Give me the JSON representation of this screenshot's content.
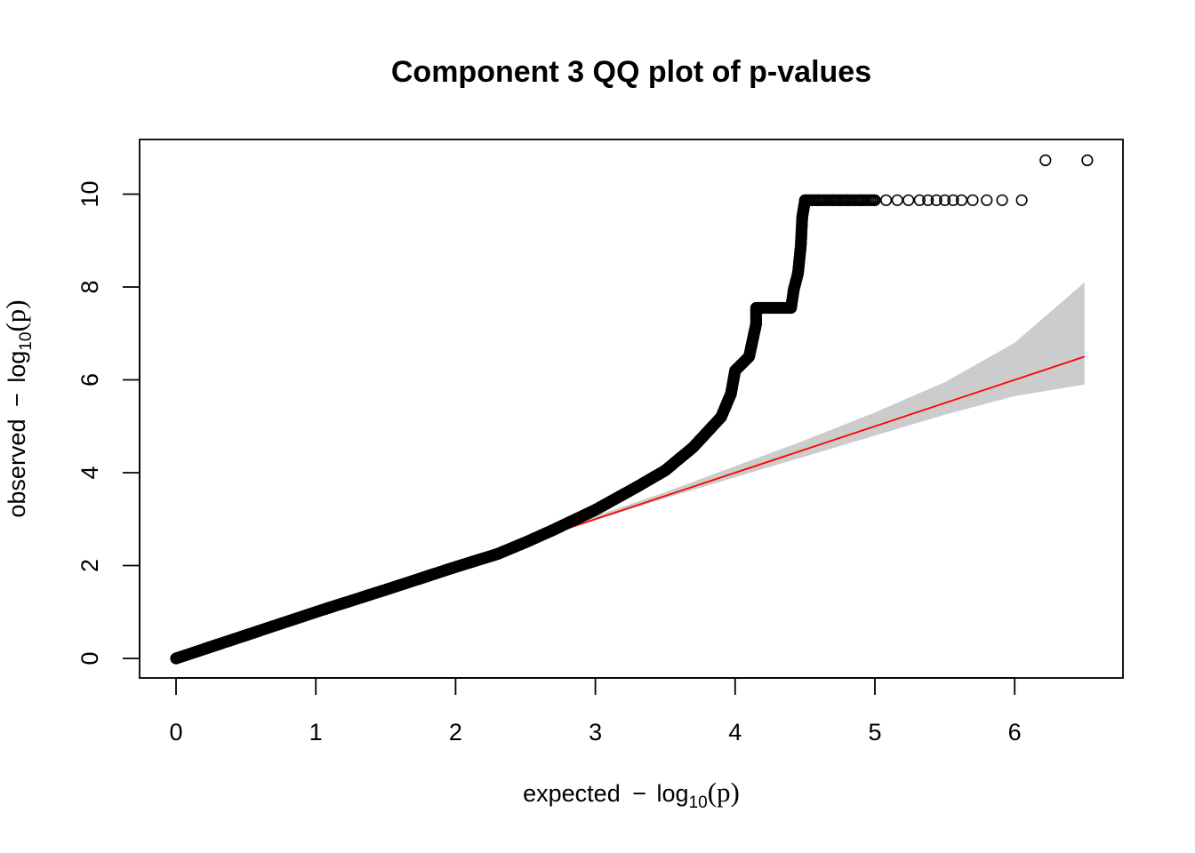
{
  "chart_data": {
    "type": "scatter",
    "title": "Component 3 QQ plot of p-values",
    "xlabel": {
      "prefix": "expected",
      "minus": "−",
      "fn": "log",
      "sub": "10",
      "arg": "(p)"
    },
    "ylabel": {
      "prefix": "observed",
      "minus": "−",
      "fn": "log",
      "sub": "10",
      "arg": "(p)"
    },
    "xlim": [
      0,
      6.5
    ],
    "ylim": [
      0,
      10.75
    ],
    "x_ticks": [
      0,
      1,
      2,
      3,
      4,
      5,
      6
    ],
    "y_ticks": [
      0,
      2,
      4,
      6,
      8,
      10
    ],
    "grid": false,
    "reference_line": {
      "color": "#ff0000",
      "from": [
        2.65,
        2.65
      ],
      "to": [
        6.5,
        6.5
      ]
    },
    "confidence_band": {
      "color": "#cccccc",
      "upper": [
        [
          2.6,
          2.65
        ],
        [
          3.5,
          3.58
        ],
        [
          4.5,
          4.7
        ],
        [
          5.0,
          5.3
        ],
        [
          5.5,
          5.95
        ],
        [
          6.0,
          6.8
        ],
        [
          6.5,
          8.1
        ]
      ],
      "lower": [
        [
          2.6,
          2.6
        ],
        [
          3.5,
          3.45
        ],
        [
          4.5,
          4.35
        ],
        [
          5.0,
          4.8
        ],
        [
          5.5,
          5.25
        ],
        [
          6.0,
          5.65
        ],
        [
          6.5,
          5.9
        ]
      ]
    },
    "points_color": "#000000",
    "points_curve": [
      [
        0.0,
        0.0
      ],
      [
        0.5,
        0.5
      ],
      [
        1.0,
        1.0
      ],
      [
        1.5,
        1.48
      ],
      [
        2.0,
        1.97
      ],
      [
        2.3,
        2.25
      ],
      [
        2.5,
        2.5
      ],
      [
        2.7,
        2.77
      ],
      [
        3.0,
        3.2
      ],
      [
        3.3,
        3.7
      ],
      [
        3.5,
        4.05
      ],
      [
        3.7,
        4.55
      ],
      [
        3.9,
        5.2
      ],
      [
        3.97,
        5.7
      ],
      [
        4.0,
        6.2
      ],
      [
        4.05,
        6.35
      ],
      [
        4.1,
        6.5
      ],
      [
        4.15,
        7.2
      ],
      [
        4.15,
        7.55
      ],
      [
        4.4,
        7.55
      ],
      [
        4.42,
        7.95
      ],
      [
        4.45,
        8.3
      ],
      [
        4.47,
        8.9
      ],
      [
        4.48,
        9.5
      ],
      [
        4.5,
        9.87
      ]
    ],
    "points_tail": [
      [
        4.5,
        9.87
      ],
      [
        4.6,
        9.87
      ],
      [
        4.7,
        9.87
      ],
      [
        4.8,
        9.87
      ],
      [
        4.9,
        9.87
      ],
      [
        5.0,
        9.87
      ],
      [
        5.08,
        9.87
      ],
      [
        5.16,
        9.87
      ],
      [
        5.24,
        9.87
      ],
      [
        5.32,
        9.87
      ],
      [
        5.38,
        9.87
      ],
      [
        5.44,
        9.87
      ],
      [
        5.5,
        9.87
      ],
      [
        5.56,
        9.87
      ],
      [
        5.62,
        9.87
      ],
      [
        5.7,
        9.87
      ],
      [
        5.8,
        9.87
      ],
      [
        5.91,
        9.87
      ],
      [
        6.05,
        9.87
      ],
      [
        6.22,
        10.73
      ],
      [
        6.52,
        10.73
      ]
    ]
  }
}
